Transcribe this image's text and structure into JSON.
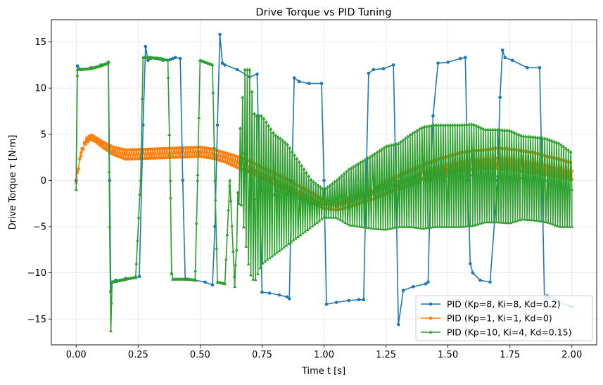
{
  "chart_data": {
    "type": "line",
    "title": "Drive Torque vs PID Tuning",
    "xlabel": "Time t  [s]",
    "ylabel": "Drive Torque τ  [N·m]",
    "xlim": [
      -0.1,
      2.1
    ],
    "ylim": [
      -17.8,
      17.4
    ],
    "xticks": [
      0.0,
      0.25,
      0.5,
      0.75,
      1.0,
      1.25,
      1.5,
      1.75,
      2.0
    ],
    "xtick_labels": [
      "0.00",
      "0.25",
      "0.50",
      "0.75",
      "1.00",
      "1.25",
      "1.50",
      "1.75",
      "2.00"
    ],
    "yticks": [
      -15,
      -10,
      -5,
      0,
      5,
      10,
      15
    ],
    "ytick_labels": [
      "−15",
      "−10",
      "−5",
      "0",
      "5",
      "10",
      "15"
    ],
    "grid": true,
    "legend_position": "lower-right",
    "series": [
      {
        "name": "PID (Kp=8, Ki=8, Kd=0.2)",
        "color": "#1f77b4",
        "marker": "circle",
        "x": [
          0.0,
          0.005,
          0.02,
          0.06,
          0.1,
          0.13,
          0.135,
          0.14,
          0.145,
          0.16,
          0.2,
          0.24,
          0.255,
          0.27,
          0.28,
          0.29,
          0.3,
          0.35,
          0.38,
          0.39,
          0.4,
          0.42,
          0.43,
          0.44,
          0.45,
          0.48,
          0.52,
          0.55,
          0.56,
          0.57,
          0.58,
          0.59,
          0.6,
          0.65,
          0.7,
          0.73,
          0.74,
          0.75,
          0.78,
          0.82,
          0.85,
          0.86,
          0.87,
          0.88,
          0.9,
          0.94,
          0.99,
          1.0,
          1.01,
          1.05,
          1.1,
          1.14,
          1.16,
          1.17,
          1.18,
          1.2,
          1.24,
          1.28,
          1.29,
          1.3,
          1.32,
          1.36,
          1.41,
          1.42,
          1.43,
          1.44,
          1.46,
          1.5,
          1.55,
          1.57,
          1.58,
          1.59,
          1.6,
          1.63,
          1.67,
          1.7,
          1.71,
          1.72,
          1.73,
          1.76,
          1.82,
          1.87,
          1.88,
          1.89,
          1.9,
          1.95,
          1.99,
          2.0
        ],
        "y": [
          0.0,
          12.4,
          12.0,
          12.2,
          12.5,
          12.8,
          0.0,
          -12.0,
          -11.0,
          -10.8,
          -10.6,
          -10.5,
          -10.4,
          6.0,
          14.5,
          13.0,
          13.2,
          13.0,
          13.1,
          13.2,
          13.3,
          13.2,
          0.0,
          -10.7,
          -10.7,
          -10.8,
          -11.0,
          -11.3,
          -5.0,
          6.0,
          15.8,
          12.7,
          12.5,
          12.0,
          11.2,
          11.5,
          0.0,
          -12.1,
          -12.2,
          -12.4,
          -12.6,
          -12.8,
          0.0,
          11.1,
          10.7,
          10.5,
          10.5,
          0.0,
          -13.4,
          -13.2,
          -13.0,
          -12.9,
          -12.9,
          0.0,
          11.6,
          12.0,
          12.1,
          12.5,
          0.0,
          -15.6,
          -11.9,
          -11.5,
          -11.2,
          -11.0,
          0.0,
          7.0,
          12.7,
          12.8,
          13.2,
          13.3,
          0.0,
          -9.0,
          -10.0,
          -10.8,
          -11.0,
          0.0,
          9.0,
          14.1,
          13.3,
          13.0,
          12.2,
          12.2,
          0.0,
          -13.7,
          -12.5,
          -13.2,
          -13.6,
          -13.7
        ]
      },
      {
        "name": "PID (Kp=1, Ki=1, Kd=0)",
        "color": "#ff7f0e",
        "marker": "square",
        "x": [
          0.0,
          0.02,
          0.04,
          0.06,
          0.08,
          0.1,
          0.15,
          0.2,
          0.3,
          0.4,
          0.5,
          0.55,
          0.6,
          0.65,
          0.7,
          0.75,
          0.8,
          0.85,
          0.9,
          0.95,
          1.0,
          1.05,
          1.1,
          1.15,
          1.2,
          1.25,
          1.3,
          1.35,
          1.4,
          1.45,
          1.5,
          1.55,
          1.6,
          1.65,
          1.7,
          1.75,
          1.8,
          1.85,
          1.9,
          1.95,
          2.0
        ],
        "y": [
          0.0,
          3.0,
          4.3,
          4.7,
          4.4,
          4.0,
          3.2,
          2.8,
          2.9,
          3.0,
          3.1,
          2.9,
          2.5,
          2.0,
          1.5,
          0.8,
          0.2,
          -0.5,
          -1.2,
          -1.8,
          -2.6,
          -2.8,
          -2.5,
          -2.0,
          -1.5,
          -0.8,
          -0.2,
          0.3,
          0.9,
          1.3,
          1.7,
          2.0,
          2.2,
          2.3,
          2.4,
          2.3,
          2.1,
          1.9,
          1.6,
          1.3,
          1.0
        ],
        "amp": [
          0.2,
          0.2,
          0.25,
          0.25,
          0.25,
          0.3,
          0.4,
          0.5,
          0.5,
          0.5,
          0.5,
          0.5,
          0.5,
          0.6,
          0.6,
          0.6,
          0.6,
          0.6,
          0.6,
          0.5,
          0.4,
          0.4,
          0.4,
          0.4,
          0.5,
          0.6,
          0.7,
          0.8,
          0.8,
          0.9,
          0.9,
          1.0,
          1.0,
          1.0,
          1.1,
          1.1,
          1.1,
          1.1,
          1.0,
          1.0,
          0.9
        ]
      },
      {
        "name": "PID (Kp=10, Ki=4, Kd=0.15)",
        "color": "#2ca02c",
        "marker": "triangle",
        "x": [
          0.0,
          0.005,
          0.02,
          0.06,
          0.1,
          0.12,
          0.13,
          0.135,
          0.14,
          0.145,
          0.15,
          0.2,
          0.24,
          0.26,
          0.27,
          0.3,
          0.34,
          0.37,
          0.38,
          0.385,
          0.39,
          0.42,
          0.45,
          0.48,
          0.49,
          0.5,
          0.52,
          0.55,
          0.56,
          0.57,
          0.6,
          0.62,
          0.64,
          0.66,
          0.68,
          0.7,
          0.72,
          0.75,
          0.8,
          0.85,
          0.9,
          0.95,
          1.0,
          1.05,
          1.1,
          1.15,
          1.2,
          1.25,
          1.3,
          1.35,
          1.4,
          1.45,
          1.5,
          1.55,
          1.6,
          1.65,
          1.7,
          1.75,
          1.8,
          1.85,
          1.9,
          1.95,
          2.0
        ],
        "y": [
          -1.0,
          12.0,
          12.0,
          12.1,
          12.4,
          12.6,
          12.8,
          -5.0,
          -16.3,
          -11.0,
          -11.0,
          -10.7,
          -10.5,
          0.0,
          13.3,
          13.3,
          13.2,
          13.0,
          0.0,
          -10.0,
          -10.7,
          -10.7,
          -10.7,
          -10.8,
          0.0,
          13.0,
          12.8,
          12.5,
          0.0,
          -11.0,
          -11.2,
          0.0,
          -11.5,
          2.0,
          3.0,
          1.0,
          -2.0,
          -1.0,
          -1.5,
          -1.5,
          -2.0,
          -2.5,
          -2.5,
          -2.0,
          -1.8,
          -1.5,
          -1.2,
          -0.8,
          -0.5,
          0.0,
          0.3,
          0.5,
          0.5,
          0.5,
          0.6,
          0.5,
          0.5,
          0.4,
          0.3,
          0.2,
          0.0,
          -0.5,
          -1.0
        ],
        "amp": [
          0,
          0,
          0,
          0,
          0,
          0,
          0,
          0,
          0,
          0,
          0,
          0,
          0,
          0,
          0,
          0,
          0,
          0,
          0,
          0,
          0,
          0,
          0,
          0,
          0,
          0,
          0,
          0,
          0,
          0,
          0,
          0,
          0,
          3.0,
          9.0,
          11.0,
          9.0,
          8.0,
          6.5,
          5.5,
          4.0,
          2.5,
          1.5,
          2.0,
          3.0,
          3.5,
          4.0,
          4.5,
          4.5,
          5.0,
          5.5,
          5.5,
          5.5,
          5.5,
          5.5,
          5.0,
          5.0,
          5.0,
          4.5,
          4.5,
          4.5,
          4.5,
          4.0
        ]
      }
    ]
  }
}
